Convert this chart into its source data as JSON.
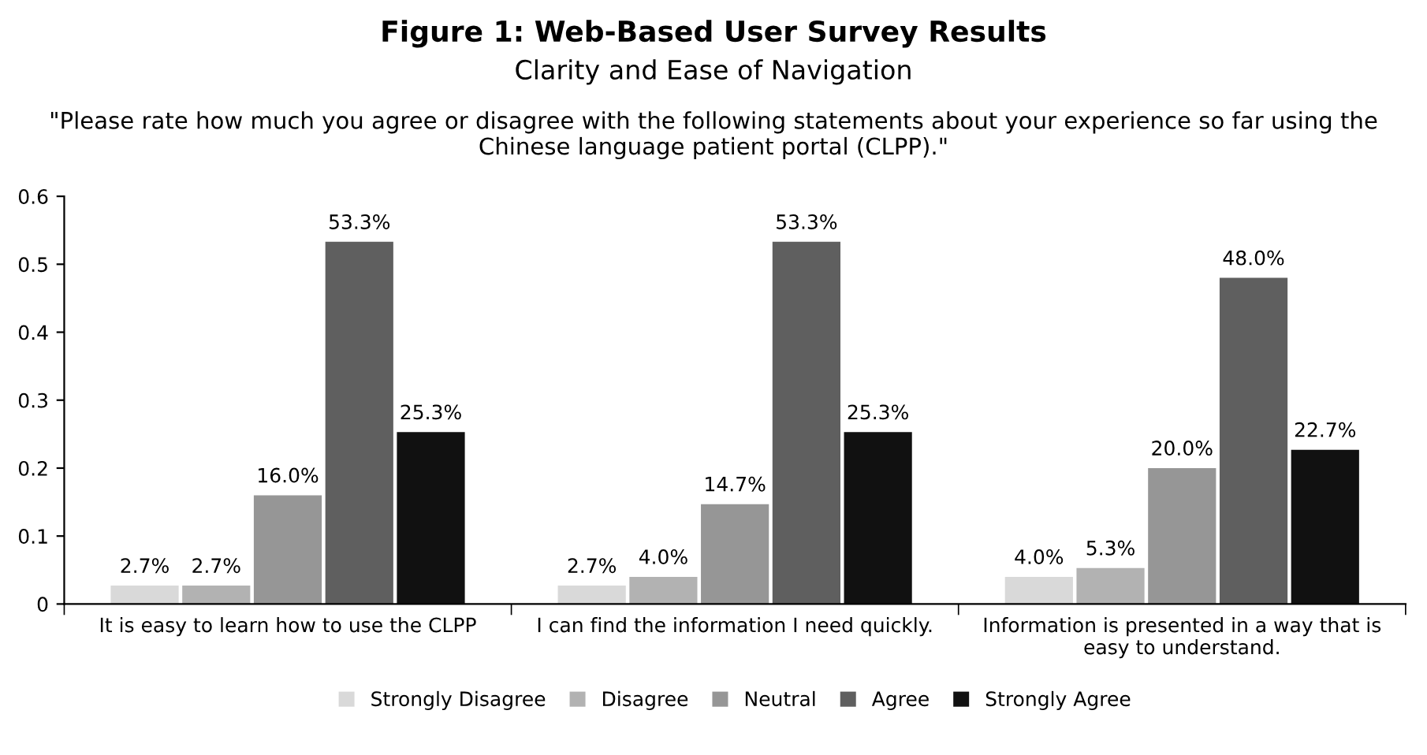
{
  "chart_data": {
    "type": "bar",
    "title": "Figure 1: Web-Based User Survey Results",
    "subtitle": "Clarity and Ease of Navigation",
    "annotations": [
      "\"Please rate how much you agree or disagree with the following statements about your experience so far using the Chinese language patient portal (CLPP).\""
    ],
    "categories": [
      "It is easy to learn how to use the CLPP",
      "I can find the information I need quickly.",
      "Information is presented in a way that is\neasy to understand."
    ],
    "series": [
      {
        "name": "Strongly Disagree",
        "color": "#d9d9d9",
        "values": [
          0.027,
          0.027,
          0.04
        ],
        "value_labels": [
          "2.7%",
          "2.7%",
          "4.0%"
        ]
      },
      {
        "name": "Disagree",
        "color": "#b2b2b2",
        "values": [
          0.027,
          0.04,
          0.053
        ],
        "value_labels": [
          "2.7%",
          "4.0%",
          "5.3%"
        ]
      },
      {
        "name": "Neutral",
        "color": "#969696",
        "values": [
          0.16,
          0.147,
          0.2
        ],
        "value_labels": [
          "16.0%",
          "14.7%",
          "20.0%"
        ]
      },
      {
        "name": "Agree",
        "color": "#5f5f5f",
        "values": [
          0.533,
          0.533,
          0.48
        ],
        "value_labels": [
          "53.3%",
          "53.3%",
          "48.0%"
        ]
      },
      {
        "name": "Strongly Agree",
        "color": "#111111",
        "values": [
          0.253,
          0.253,
          0.227
        ],
        "value_labels": [
          "25.3%",
          "25.3%",
          "22.7%"
        ]
      }
    ],
    "ylim": [
      0,
      0.6
    ],
    "yticks": [
      0,
      {
        "value": 0.1,
        "label": "0.1"
      },
      {
        "value": 0.2,
        "label": "0.2"
      },
      {
        "value": 0.3,
        "label": "0.3"
      },
      {
        "value": 0.4,
        "label": "0.4"
      },
      {
        "value": 0.5,
        "label": "0.5"
      },
      {
        "value": 0.6,
        "label": "0.6"
      }
    ],
    "grid": false,
    "legend": "bottom"
  }
}
